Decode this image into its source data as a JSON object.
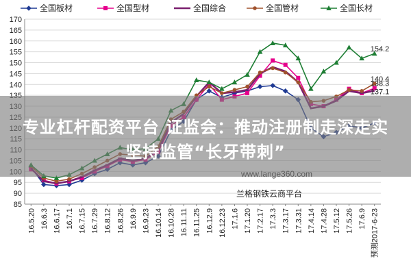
{
  "chart_data": {
    "type": "line",
    "ylim": [
      85,
      170
    ],
    "yticks": [
      85,
      90,
      95,
      100,
      105,
      110,
      115,
      120,
      125,
      130,
      135,
      140,
      145,
      150,
      155,
      160,
      165,
      170
    ],
    "categories": [
      "16.5.20",
      "16.6.3",
      "16.6.17",
      "16.7.1",
      "16.7.15",
      "16.7.29",
      "16.8.12",
      "16.8.26",
      "16.9.9",
      "16.9.23",
      "16.10.14",
      "16.10.28",
      "16.11.11",
      "16.11.25",
      "16.12.9",
      "16.12.23",
      "17.1.6",
      "17.1.20",
      "17.2.17",
      "17.3.3",
      "17.3.17",
      "17.3.31",
      "17.4.14",
      "17.4.28",
      "17.5.12",
      "17.5.26",
      "17.6.9",
      "预测2017-6-23"
    ],
    "series": [
      {
        "name": "全国板材",
        "color": "#1f3a93",
        "marker": "diamond",
        "values": [
          102,
          94,
          93.5,
          94,
          96,
          99,
          101,
          104,
          103,
          104,
          107,
          119,
          123,
          133,
          137,
          134,
          136,
          137,
          139,
          139.5,
          137,
          133,
          120,
          116,
          118,
          121,
          120,
          122.3
        ]
      },
      {
        "name": "全国型材",
        "color": "#e6008c",
        "marker": "square",
        "values": [
          101,
          96,
          94.5,
          95.5,
          97,
          100,
          102.5,
          105.5,
          104.5,
          105.5,
          109,
          121,
          125,
          133,
          140,
          133,
          134.5,
          136,
          144,
          151,
          149,
          143,
          131,
          130,
          133,
          138,
          136,
          138.3
        ]
      },
      {
        "name": "全国综合",
        "color": "#7a1f6e",
        "marker": "line",
        "values": [
          101.5,
          95.5,
          94.5,
          95.5,
          97.5,
          100.5,
          103,
          106,
          105,
          106,
          110,
          122.5,
          126.5,
          134.5,
          141,
          136,
          136.5,
          137.5,
          145,
          148,
          146,
          141,
          129,
          130,
          132.5,
          137,
          136,
          137.1
        ]
      },
      {
        "name": "全国管材",
        "color": "#a0522d",
        "marker": "circle",
        "values": [
          102.5,
          97,
          95.5,
          96.5,
          99,
          102,
          105,
          108,
          107.5,
          107,
          111.5,
          124,
          127.5,
          135,
          139,
          136,
          137.5,
          139,
          145.5,
          147.5,
          145.5,
          141,
          132,
          132.5,
          134.5,
          137.5,
          137,
          140.4
        ]
      },
      {
        "name": "全国长材",
        "color": "#1e7e34",
        "marker": "triangle",
        "values": [
          103,
          98,
          97,
          98.5,
          101.5,
          105,
          108,
          111,
          110,
          110.5,
          115,
          128,
          131,
          142,
          141,
          138,
          141,
          144.5,
          155,
          159,
          158,
          152,
          138,
          146,
          150,
          157,
          152,
          154.2
        ]
      }
    ],
    "annotations": [
      {
        "series": "全国长材",
        "text": "154.2"
      },
      {
        "series": "全国管材",
        "text": "140.4"
      },
      {
        "series": "全国型材",
        "text": "138.3"
      },
      {
        "series": "全国综合",
        "text": "137.1"
      }
    ],
    "legend_position": "top",
    "grid": "horizontal"
  },
  "watermark": {
    "url": "www.lange360.com",
    "name": "兰格钢铁云商平台"
  },
  "banner": {
    "line1": "专业杠杆配资平台 证监会：推动注册制走深走实",
    "line2": "坚持监管“长牙带刺”"
  }
}
